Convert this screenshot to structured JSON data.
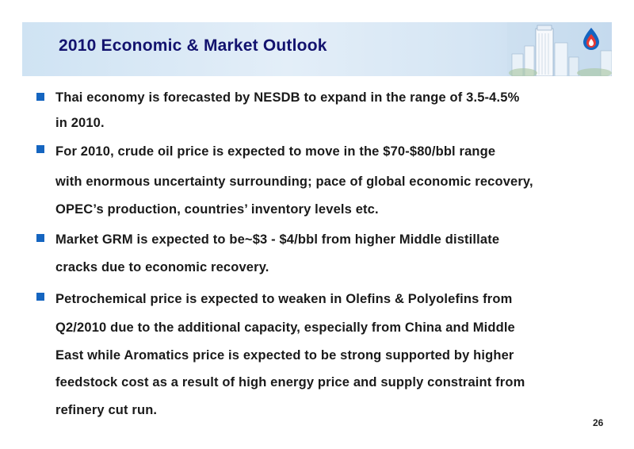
{
  "slide": {
    "title": "2010 Economic & Market Outlook",
    "page_number": "26",
    "accent_color": "#12126e",
    "bullet_color": "#1565c0",
    "bullets": [
      {
        "lines": [
          "Thai economy is forecasted by NESDB to expand in the range of 3.5-4.5%",
          " in 2010."
        ]
      },
      {
        "lines": [
          "For 2010, crude oil price is expected to move in the $70-$80/bbl range",
          "with enormous uncertainty surrounding; pace of global economic recovery,",
          "OPEC’s production, countries’ inventory levels etc."
        ]
      },
      {
        "lines": [
          "Market GRM is expected to be~$3 - $4/bbl from higher Middle distillate",
          "cracks due to economic recovery."
        ]
      },
      {
        "lines": [
          "Petrochemical price is expected to weaken in Olefins & Polyolefins from",
          "Q2/2010 due to the additional capacity, especially from China and Middle",
          "East while Aromatics price is expected to be strong supported by higher",
          "feedstock cost as a result of high energy price and supply constraint from",
          "refinery cut run."
        ]
      }
    ]
  }
}
